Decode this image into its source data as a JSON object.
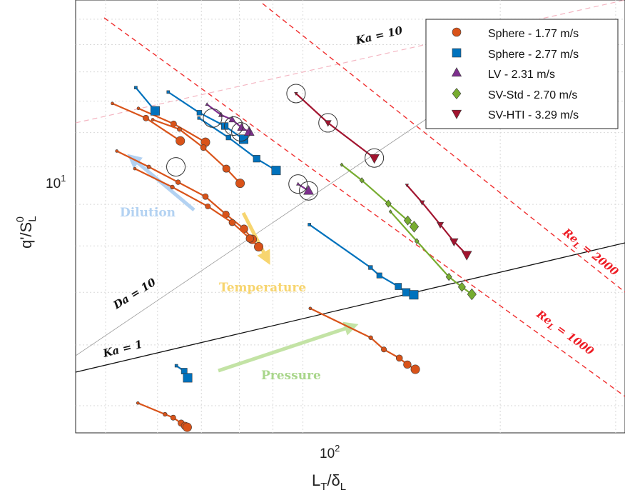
{
  "chart_data": {
    "type": "scatter",
    "title": "",
    "xlabel": "L_T/δ_L",
    "ylabel": "q'/S_L^0",
    "xscale": "log",
    "yscale": "log",
    "xlim": [
      45,
      310
    ],
    "ylim": [
      5.6,
      16.8
    ],
    "xtick_label": "10^2",
    "ytick_label": "10^1",
    "grid": true,
    "legend_position": "top-right",
    "series": [
      {
        "name": "Sphere - 1.77 m/s",
        "marker": "circle",
        "color": "#d95319",
        "lines": [
          [
            [
              51.2,
              12.92
            ],
            [
              57.6,
              12.45
            ],
            [
              65,
              11.75
            ]
          ],
          [
            [
              56.1,
              12.76
            ],
            [
              63.5,
              12.27
            ],
            [
              71,
              11.71
            ]
          ],
          [
            [
              59,
              12.4
            ],
            [
              64.8,
              12.1
            ],
            [
              70.5,
              11.55
            ],
            [
              76.4,
              10.95
            ],
            [
              80.2,
              10.55
            ]
          ],
          [
            [
              52,
              11.45
            ],
            [
              58.2,
              11
            ],
            [
              64.5,
              10.58
            ],
            [
              71,
              10.2
            ],
            [
              76.3,
              9.75
            ],
            [
              81.3,
              9.4
            ],
            [
              83.7,
              9.15
            ]
          ],
          [
            [
              55.4,
              10.95
            ],
            [
              63.2,
              10.45
            ],
            [
              71.6,
              9.95
            ],
            [
              78,
              9.55
            ],
            [
              83,
              9.17
            ],
            [
              85.6,
              8.98
            ]
          ],
          [
            [
              102.6,
              7.68
            ],
            [
              126.9,
              7.13
            ],
            [
              132.9,
              6.92
            ],
            [
              140.3,
              6.77
            ],
            [
              144.3,
              6.66
            ],
            [
              148.4,
              6.58
            ]
          ],
          [
            [
              56,
              6.04
            ],
            [
              61.6,
              5.87
            ],
            [
              63.4,
              5.82
            ],
            [
              65.2,
              5.74
            ],
            [
              66.1,
              5.7
            ],
            [
              66.6,
              5.68
            ]
          ]
        ],
        "circled": [
          [
            64,
            11
          ]
        ]
      },
      {
        "name": "Sphere - 2.77 m/s",
        "marker": "square",
        "color": "#0072bd",
        "lines": [
          [
            [
              55.6,
              13.45
            ],
            [
              59.5,
              12.68
            ]
          ],
          [
            [
              62.3,
              13.3
            ],
            [
              69.5,
              12.62
            ],
            [
              76,
              12.2
            ],
            [
              81.2,
              11.8
            ]
          ],
          [
            [
              69.4,
              12.45
            ],
            [
              77,
              11.85
            ],
            [
              85,
              11.23
            ],
            [
              91,
              10.9
            ]
          ],
          [
            [
              102.3,
              9.5
            ],
            [
              126.8,
              8.52
            ],
            [
              130.8,
              8.35
            ],
            [
              139.8,
              8.12
            ],
            [
              143.8,
              8.0
            ],
            [
              147.6,
              7.95
            ]
          ],
          [
            [
              64.1,
              6.64
            ],
            [
              65.9,
              6.55
            ],
            [
              66.7,
              6.44
            ]
          ]
        ]
      },
      {
        "name": "LV - 2.31 m/s",
        "marker": "triangle",
        "color": "#7e2f8e",
        "lines": [
          [
            [
              71.4,
              12.89
            ],
            [
              75,
              12.55
            ],
            [
              78,
              12.4
            ],
            [
              80.6,
              12.15
            ],
            [
              82.8,
              12.02
            ]
          ],
          [
            [
              98.3,
              10.53
            ],
            [
              102,
              10.35
            ]
          ]
        ],
        "circled": [
          [
            72.8,
            12.45
          ],
          [
            78.4,
            12.2
          ],
          [
            80.4,
            12.02
          ],
          [
            98.3,
            10.53
          ],
          [
            102,
            10.35
          ]
        ]
      },
      {
        "name": "SV-Std - 2.70 m/s",
        "marker": "diamond",
        "color": "#77ac30",
        "lines": [
          [
            [
              114.6,
              11.06
            ],
            [
              123,
              10.63
            ],
            [
              135,
              10.02
            ],
            [
              144.5,
              9.6
            ],
            [
              147.8,
              9.45
            ]
          ],
          [
            [
              136,
              9.82
            ],
            [
              149.2,
              9.11
            ],
            [
              167,
              8.32
            ],
            [
              174.8,
              8.11
            ],
            [
              181,
              7.96
            ]
          ]
        ]
      },
      {
        "name": "SV-HTI - 3.29 m/s",
        "marker": "triangle-down",
        "color": "#a2142f",
        "lines": [
          [
            [
              97.6,
              13.25
            ],
            [
              109.2,
              12.3
            ],
            [
              128.5,
              11.25
            ]
          ],
          [
            [
              144.1,
              10.5
            ],
            [
              152,
              10.05
            ],
            [
              162,
              9.5
            ],
            [
              170,
              9.1
            ],
            [
              177.8,
              8.8
            ]
          ]
        ],
        "circled": [
          [
            97.6,
            13.25
          ],
          [
            109.2,
            12.3
          ],
          [
            128.5,
            11.25
          ]
        ]
      }
    ],
    "reference_lines": [
      {
        "label": "Ka = 10"
      },
      {
        "label": "Ka = 1"
      },
      {
        "label": "Da = 10"
      },
      {
        "label": "Re_L = 2000",
        "prefix": "Re",
        "sub": "L",
        "suffix": " = 2000"
      },
      {
        "label": "Re_L = 1000",
        "prefix": "Re",
        "sub": "L",
        "suffix": " = 1000"
      }
    ],
    "arrows": [
      {
        "label": "Dilution",
        "color": "#b3d2f2"
      },
      {
        "label": "Temperature",
        "color": "#f7d56f"
      },
      {
        "label": "Pressure",
        "color": "#c3e3a5"
      }
    ]
  }
}
